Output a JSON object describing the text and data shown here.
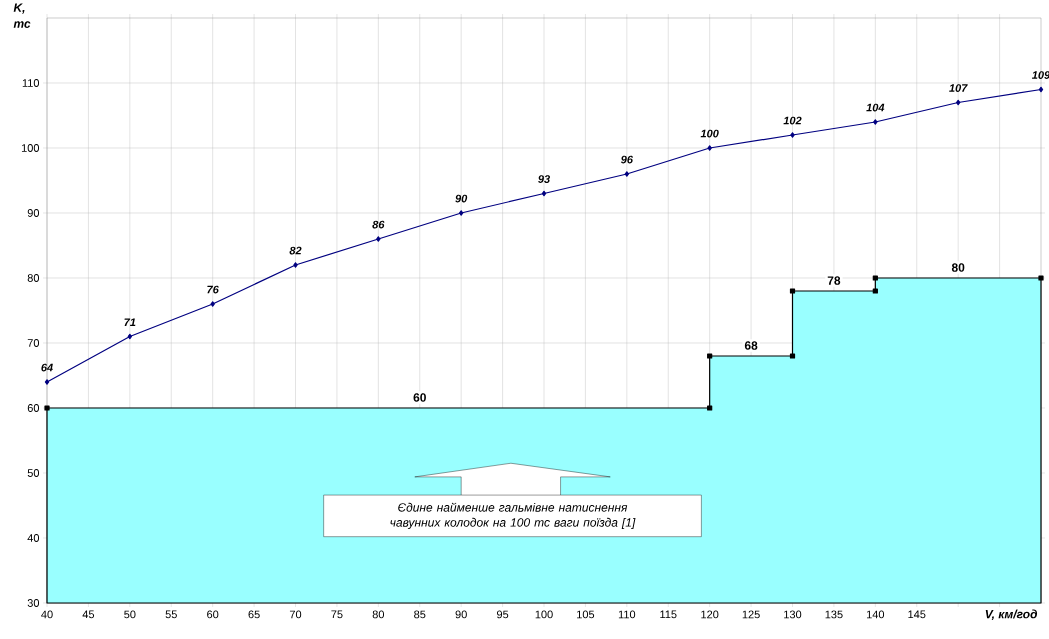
{
  "chart_data": {
    "type": "line",
    "xlabel": "V, км/год",
    "ylabel": "K, тс",
    "xlim": [
      40,
      160
    ],
    "ylim": [
      30,
      120
    ],
    "xticks": [
      40,
      45,
      50,
      55,
      60,
      65,
      70,
      75,
      80,
      85,
      90,
      95,
      100,
      105,
      110,
      115,
      120,
      125,
      130,
      135,
      140,
      145,
      {
        "value": 150,
        "label": null
      },
      {
        "value": 155,
        "label": null
      }
    ],
    "yticks": [
      30,
      40,
      50,
      60,
      70,
      80,
      90,
      100,
      110
    ],
    "grid": true,
    "series": [
      {
        "type": "area",
        "color": "#99ffff",
        "marker": "square",
        "x": [
          40,
          120,
          120,
          130,
          130,
          140,
          140,
          160
        ],
        "values": [
          60,
          60,
          68,
          68,
          78,
          78,
          80,
          80
        ]
      },
      {
        "color": "#000080",
        "marker": "diamond",
        "data_labels": true,
        "x": [
          40,
          50,
          60,
          70,
          80,
          90,
          100,
          110,
          120,
          130,
          140,
          150,
          160
        ],
        "values": [
          64,
          71,
          76,
          82,
          86,
          90,
          93,
          96,
          100,
          102,
          104,
          107,
          109
        ]
      }
    ],
    "annotations": [
      {
        "text": "60",
        "x": 85,
        "y": 60
      },
      {
        "text": "68",
        "x": 125,
        "y": 68
      },
      {
        "text": "78",
        "x": 135,
        "y": 78
      },
      {
        "text": "80",
        "x": 150,
        "y": 80
      },
      "Єдине найменше гальмівне натиснення чавунних колодок на 100 тс ваги поїзда [1]"
    ]
  }
}
